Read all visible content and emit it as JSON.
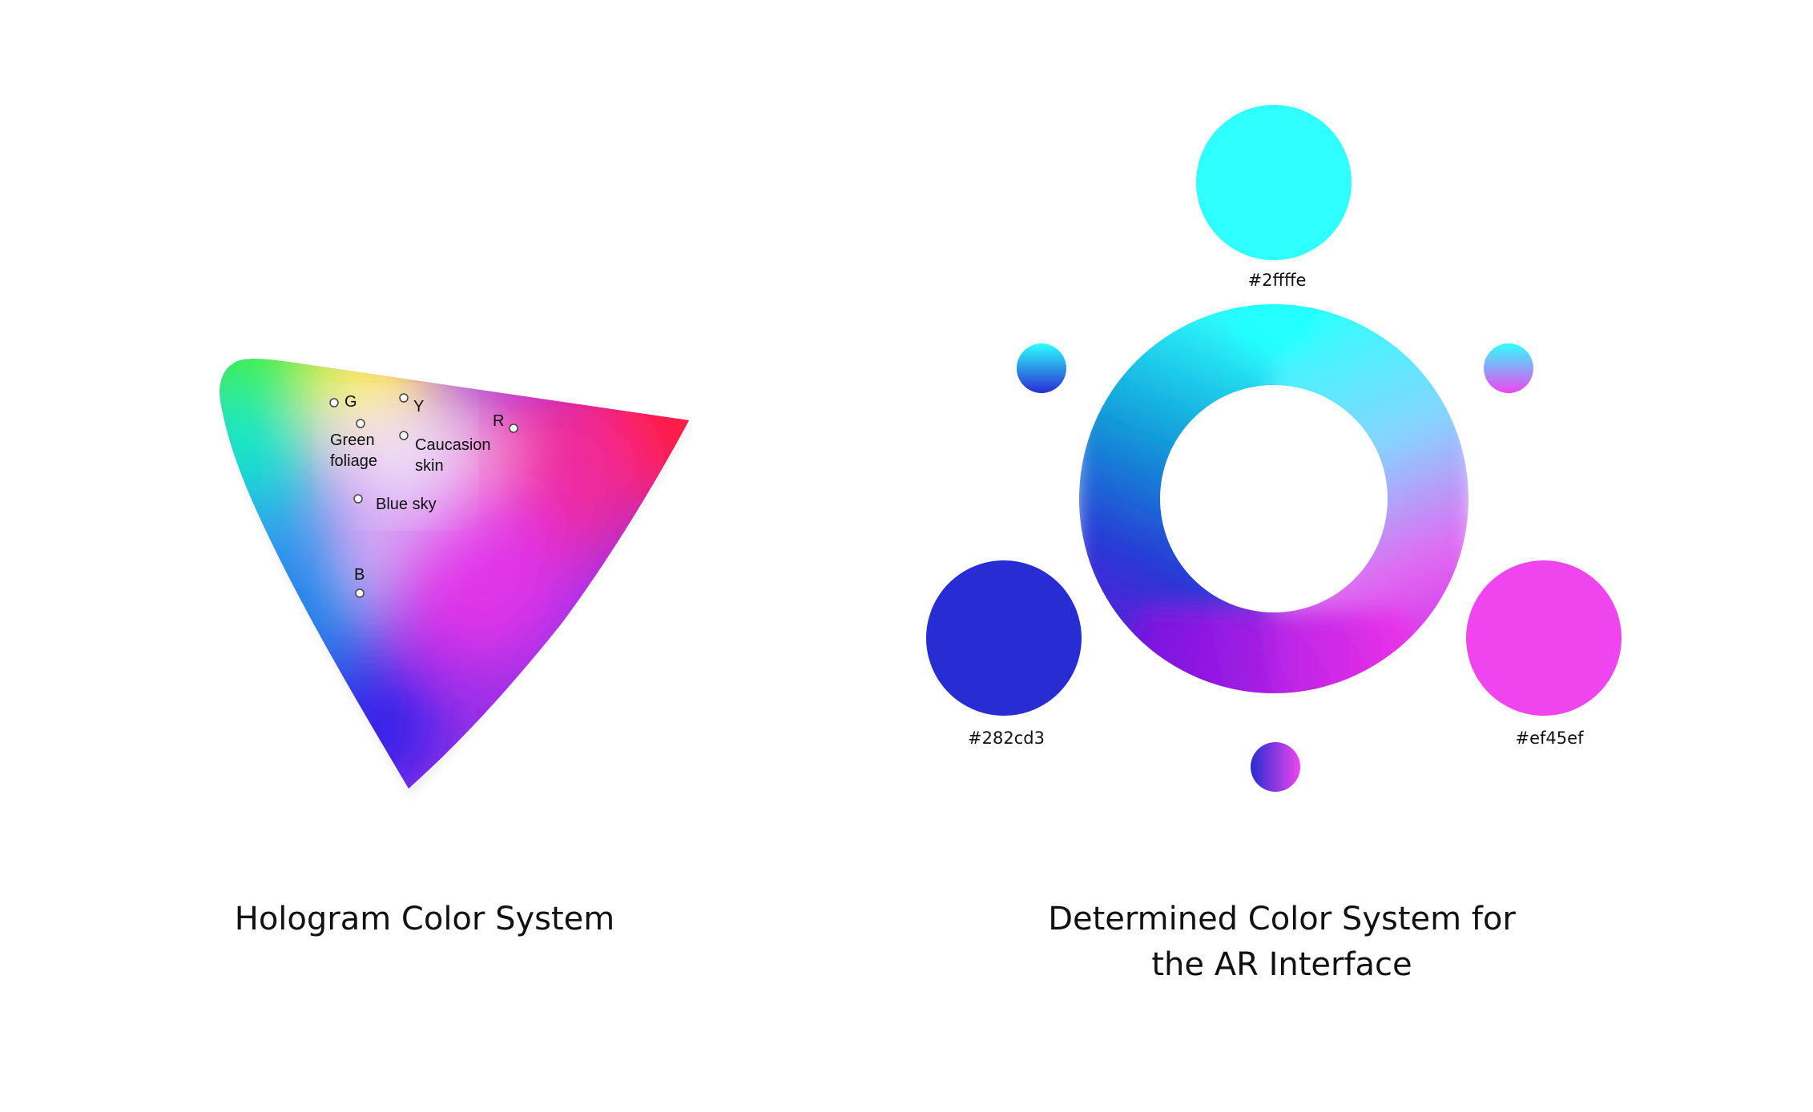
{
  "hologram": {
    "caption": "Hologram Color System",
    "primaries": [
      "G",
      "Y",
      "R",
      "B"
    ],
    "references": [
      "Green",
      "foliage",
      "Caucasion",
      "skin",
      "Blue sky"
    ]
  },
  "ar_system": {
    "caption_line1": "Determined Color System for",
    "caption_line2": "the AR Interface",
    "swatches": [
      {
        "name": "top",
        "hex": "#2ffffe",
        "label": "#2ffffe"
      },
      {
        "name": "left",
        "hex": "#282cd3",
        "label": "#282cd3"
      },
      {
        "name": "right",
        "hex": "#ef45ef",
        "label": "#ef45ef"
      }
    ],
    "blend_dots": [
      {
        "name": "cyan-blue",
        "from": "#2ffffe",
        "to": "#282cd3"
      },
      {
        "name": "cyan-magenta",
        "from": "#2ffffe",
        "to": "#ef45ef"
      },
      {
        "name": "blue-magenta",
        "from": "#282cd3",
        "to": "#ef45ef"
      }
    ]
  }
}
